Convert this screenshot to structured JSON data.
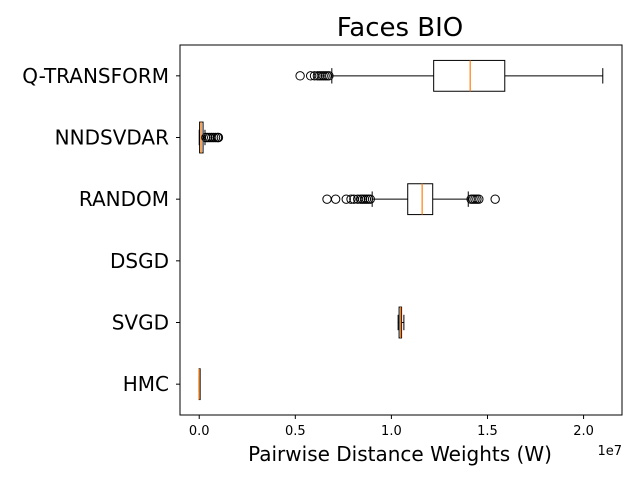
{
  "chart_data": {
    "type": "boxplot",
    "orientation": "horizontal",
    "title": "Faces BIO",
    "xlabel": "Pairwise Distance Weights (W)",
    "ylabel": "",
    "x_offset_label": "1e7",
    "xlim": [
      -1000000,
      22000000
    ],
    "xticks": [
      0,
      5000000,
      10000000,
      15000000,
      20000000
    ],
    "xtick_labels": [
      "0.0",
      "0.5",
      "1.0",
      "1.5",
      "2.0"
    ],
    "grid": false,
    "colors": {
      "box": "#000000",
      "median": "#ff7f0e",
      "flier": "#000000"
    },
    "categories": [
      "Q-TRANSFORM",
      "NNDSVDAR",
      "RANDOM",
      "DSGD",
      "SVGD",
      "HMC"
    ],
    "series": [
      {
        "category": "Q-TRANSFORM",
        "whisker_low": 6900000,
        "q1": 12200000,
        "median": 14100000,
        "q3": 15900000,
        "whisker_high": 21000000,
        "fliers": [
          5250000,
          5800000,
          6000000,
          6150000,
          6250000,
          6350000,
          6450000,
          6550000,
          6650000,
          6750000
        ]
      },
      {
        "category": "NNDSVDAR",
        "whisker_low": 0,
        "q1": 20000,
        "median": 100000,
        "q3": 200000,
        "whisker_high": 300000,
        "fliers": [
          350000,
          450000,
          550000,
          650000,
          750000,
          850000,
          950000,
          1000000
        ]
      },
      {
        "category": "RANDOM",
        "whisker_low": 9000000,
        "q1": 10850000,
        "median": 11600000,
        "q3": 12150000,
        "whisker_high": 14000000,
        "fliers": [
          6650000,
          7100000,
          7650000,
          7900000,
          8050000,
          8250000,
          8400000,
          8500000,
          8600000,
          8700000,
          8800000,
          8900000,
          14150000,
          14250000,
          14350000,
          14450000,
          14550000,
          15400000
        ]
      },
      {
        "category": "DSGD",
        "empty": true
      },
      {
        "category": "SVGD",
        "whisker_low": 10350000,
        "q1": 10400000,
        "median": 10480000,
        "q3": 10530000,
        "whisker_high": 10650000,
        "fliers": []
      },
      {
        "category": "HMC",
        "whisker_low": -10000,
        "q1": -5000,
        "median": 0,
        "q3": 5000,
        "whisker_high": 10000,
        "fliers": []
      }
    ]
  }
}
